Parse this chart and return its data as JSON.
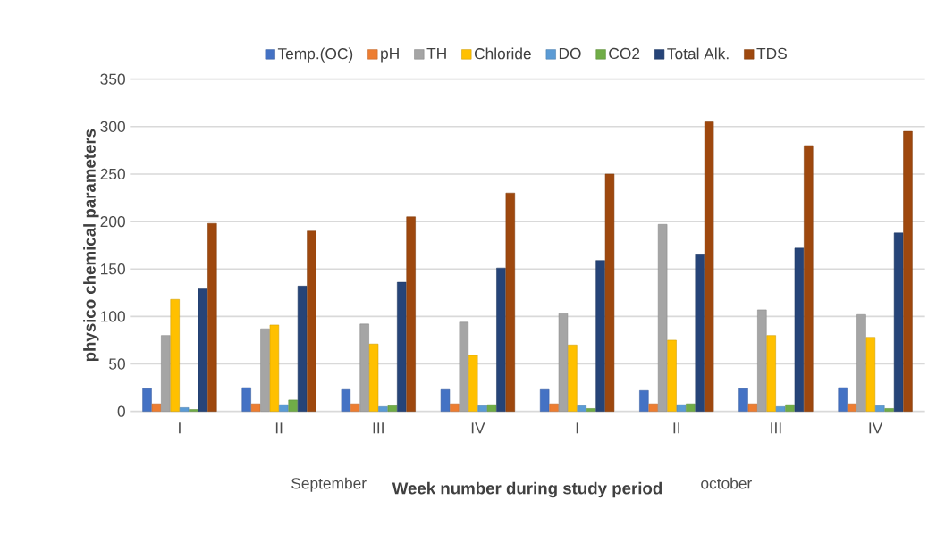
{
  "chart_data": {
    "type": "bar",
    "xlabel": "Week number during  study period",
    "ylabel": "physico chemical parameters",
    "categories": [
      "I",
      "II",
      "III",
      "IV",
      "I",
      "II",
      "III",
      "IV"
    ],
    "annotations": [
      "September",
      "october"
    ],
    "ylim": [
      0,
      350
    ],
    "yticks": [
      0,
      50,
      100,
      150,
      200,
      250,
      300,
      350
    ],
    "grid": "y",
    "legend": "top",
    "series": [
      {
        "name": "Temp.(OC)",
        "color": "#4472c4",
        "values": [
          24,
          25,
          23,
          23,
          23,
          22,
          24,
          25
        ]
      },
      {
        "name": "pH",
        "color": "#ed7d31",
        "values": [
          8,
          8,
          8,
          8,
          8,
          8,
          8,
          8
        ]
      },
      {
        "name": "TH",
        "color": "#a5a5a5",
        "values": [
          80,
          87,
          92,
          94,
          103,
          197,
          107,
          102
        ]
      },
      {
        "name": "Chloride",
        "color": "#ffc000",
        "values": [
          118,
          91,
          71,
          59,
          70,
          75,
          80,
          78
        ]
      },
      {
        "name": "DO",
        "color": "#5b9bd5",
        "values": [
          4,
          7,
          5,
          6,
          6,
          7,
          5,
          6
        ]
      },
      {
        "name": "CO2",
        "color": "#70ad47",
        "values": [
          2,
          12,
          6,
          7,
          3,
          8,
          7,
          3
        ]
      },
      {
        "name": "Total Alk.",
        "color": "#264478",
        "values": [
          129,
          132,
          136,
          151,
          159,
          165,
          172,
          188
        ]
      },
      {
        "name": "TDS",
        "color": "#9e480e",
        "values": [
          198,
          190,
          205,
          230,
          250,
          305,
          280,
          295
        ]
      }
    ]
  }
}
